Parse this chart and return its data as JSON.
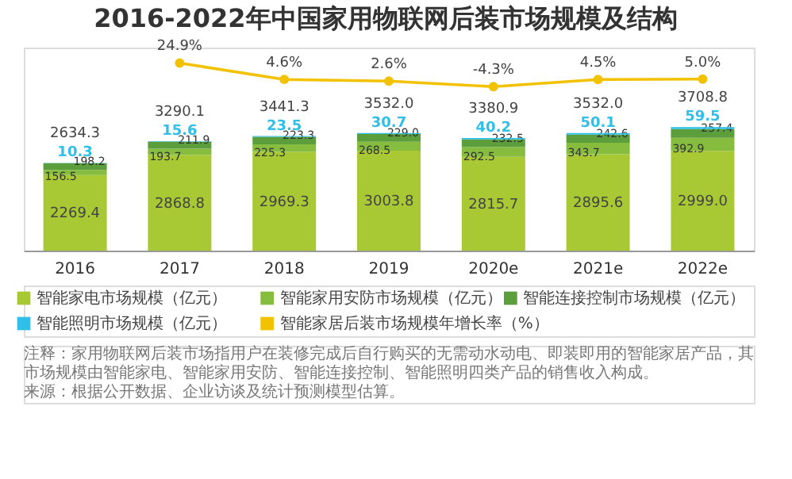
{
  "chart_data": {
    "type": "bar",
    "stacked": true,
    "title": "2016-2022年中国家用物联网后装市场规模及结构",
    "categories": [
      "2016",
      "2017",
      "2018",
      "2019",
      "2020e",
      "2021e",
      "2022e"
    ],
    "series": [
      {
        "name": "智能家电市场规模（亿元）",
        "color": "#a9c934",
        "values": [
          2269.4,
          2868.8,
          2969.3,
          3003.8,
          2815.7,
          2895.6,
          2999.0
        ],
        "value_labels": [
          "2269.4",
          "2868.8",
          "2969.3",
          "3003.8",
          "2815.7",
          "2895.6",
          "2999.0"
        ]
      },
      {
        "name": "智能家用安防市场规模（亿元）",
        "color": "#86bd3f",
        "values": [
          156.5,
          193.7,
          225.3,
          268.5,
          292.5,
          343.7,
          392.9
        ],
        "value_labels": [
          "156.5",
          "193.7",
          "225.3",
          "268.5",
          "292.5",
          "343.7",
          "392.9"
        ]
      },
      {
        "name": "智能连接控制市场规模（亿元）",
        "color": "#5c9e3c",
        "values": [
          198.2,
          211.9,
          223.3,
          229.0,
          232.5,
          242.6,
          257.4
        ],
        "value_labels": [
          "198.2",
          "211.9",
          "223.3",
          "229.0",
          "232.5",
          "242.6",
          "257.4"
        ]
      },
      {
        "name": "智能照明市场规模（亿元）",
        "color": "#2fbfe8",
        "values": [
          10.3,
          15.6,
          23.5,
          30.7,
          40.2,
          50.1,
          59.5
        ],
        "value_labels": [
          "10.3",
          "15.6",
          "23.5",
          "30.7",
          "40.2",
          "50.1",
          "59.5"
        ]
      },
      {
        "name": "智能家居后装市场规模年增长率（%）",
        "type": "line",
        "axis": "y2",
        "color": "#f2c200",
        "values": [
          null,
          24.9,
          4.6,
          2.6,
          -4.3,
          4.5,
          5.0
        ],
        "value_labels": [
          null,
          "24.9%",
          "4.6%",
          "2.6%",
          "-4.3%",
          "4.5%",
          "5.0%"
        ]
      }
    ],
    "totals": [
      "2634.3",
      "3290.1",
      "3441.3",
      "3532.0",
      "3380.9",
      "3532.0",
      "3708.8"
    ],
    "ylim": [
      0,
      6100
    ],
    "y2lim": [
      -207,
      44
    ],
    "tick_labels": "x",
    "legend": "bottom",
    "marker": "circle",
    "annotations": [
      "注释：家用物联网后装市场指用户在装修完成后自行购买的无需动水动电、即装即用的智能家居产品，其市场规模由智能家电、智能家用安防、智能连接控制、智能照明四类产品的销售收入构成。",
      "来源：根据公开数据、企业访谈及统计预测模型估算。"
    ]
  }
}
